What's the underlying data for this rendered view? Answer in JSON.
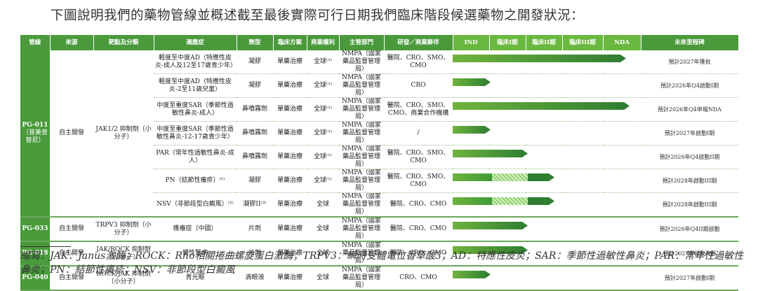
{
  "caption": "下圖說明我們的藥物管線並概述截至最後實際可行日期我們臨床階段候選藥物之開發狀況：",
  "headers": {
    "product": "管線",
    "source": "來源",
    "target": "靶點及分類",
    "indication": "適應症",
    "dosage": "劑型",
    "regimen": "臨床方案",
    "rights": "商業權利",
    "authority": "主管部門",
    "partners": "研發／商業夥伴",
    "ind": "IND",
    "p1": "臨床I期",
    "p2": "臨床II期",
    "p3": "臨床III期",
    "nda": "NDA",
    "future": "未來里程碑"
  },
  "groups": [
    {
      "product": "PG-011",
      "product_sub": "（普美昔替尼）",
      "source": "自主開發",
      "target": "JAK1/2 抑制劑（小分子）",
      "rows": [
        {
          "indication": "輕度至中度AD（特應性皮炎-成人及12至17歲青少年）",
          "dosage": "凝膠",
          "regimen": "單藥治療",
          "rights": "全球⁽¹⁾",
          "authority": "NMPA（國家藥品監督管理局）",
          "partners": "醫院、CRO、SMO、CMO",
          "progress": 0.92,
          "hatch": null,
          "milestone": "預計2027年獲批"
        },
        {
          "indication": "輕度至中度AD（特應性皮炎-2至11歲兒童）",
          "dosage": "凝膠",
          "regimen": "單藥治療",
          "rights": "全球⁽¹⁾",
          "authority": "NMPA（國家藥品監督管理局）",
          "partners": "CRO",
          "progress": 0.2,
          "hatch": null,
          "milestone": "預計2026年Q4啟動I期"
        },
        {
          "indication": "中度至重度SAR（季節性過敏性鼻炎-成人）",
          "dosage": "鼻噴霧劑",
          "regimen": "單藥治療",
          "rights": "全球⁽¹⁾",
          "authority": "NMPA（國家藥品監督管理局）",
          "partners": "醫院、CRO、SMO、CMO、商業合作機構",
          "progress": 0.94,
          "hatch": null,
          "milestone": "預計2026年Q4申報NDA"
        },
        {
          "indication": "中度至重度SAR（季節性過敏性鼻炎-12-17歲青少年）",
          "dosage": "鼻噴霧劑",
          "regimen": "單藥治療",
          "rights": "全球⁽¹⁾",
          "authority": "NMPA（國家藥品監督管理局）",
          "partners": "/",
          "progress": 0.2,
          "hatch": null,
          "milestone": "預計2027年啟動I期"
        },
        {
          "indication": "PAR（常年性過敏性鼻炎-成人）",
          "dosage": "鼻噴霧劑",
          "regimen": "單藥治療",
          "rights": "全球⁽¹⁾",
          "authority": "NMPA（國家藥品監督管理局）",
          "partners": "醫院、CRO、SMO、CMO",
          "progress": 0.4,
          "hatch": null,
          "milestone": "預計2026年Q4啟動II期"
        },
        {
          "indication": "PN（結節性癢疹）⁽¹⁾",
          "dosage": "凝膠",
          "regimen": "單藥治療",
          "rights": "全球⁽¹⁾",
          "authority": "NMPA（國家藥品監督管理局）",
          "partners": "醫院、CRO、SMO、CMO",
          "progress": 0.54,
          "hatch": [
            0.21,
            0.4
          ],
          "milestone": "預計2028年啟動III期"
        },
        {
          "indication": "NSV（非節段型白癜風）⁽²⁾",
          "dosage": "凝膠II⁽³⁾",
          "regimen": "單藥治療",
          "rights": "全球",
          "authority": "NMPA（國家藥品監督管理局）",
          "partners": "醫院、CRO、CMO",
          "progress": 0.54,
          "hatch": [
            0.21,
            0.4
          ],
          "milestone": "預計2028年啟動III期"
        }
      ]
    },
    {
      "product": "PG-033",
      "product_sub": "",
      "source": "自主開發",
      "target": "TRPV3 抑制劑（小分子）",
      "rows": [
        {
          "indication": "瘙癢症（中國）",
          "dosage": "片劑",
          "regimen": "單藥治療",
          "rights": "全球",
          "authority": "NMPA（國家藥品監督管理局）",
          "partners": "醫院、CRO、CMO",
          "progress": 0.4,
          "hatch": null,
          "milestone": "預計2026年Q4II期啟動"
        }
      ]
    },
    {
      "product": "PG-018",
      "product_sub": "",
      "source": "自主開發",
      "target": "JAK/ROCK 抑制劑（小分子）",
      "rows": [
        {
          "indication": "慢性腎病",
          "dosage": "片劑",
          "regimen": "單藥治療",
          "rights": "全球",
          "authority": "NMPA（國家藥品監督管理局）",
          "partners": "醫院、CRO、CMO",
          "progress": 0.4,
          "hatch": null,
          "milestone": "預計2027年啟動II期"
        }
      ]
    },
    {
      "product": "PG-040",
      "product_sub": "",
      "source": "自主開發",
      "target": "ROCK/JAK 抑制劑（小分子）",
      "rows": [
        {
          "indication": "青光眼",
          "dosage": "滴眼液",
          "regimen": "單藥治療",
          "rights": "全球",
          "authority": "NMPA（國家藥品監督管理局）",
          "partners": "CRO、CMO",
          "progress": 0.2,
          "hatch": null,
          "milestone": "預計2027年啟動I期"
        }
      ]
    }
  ],
  "abbreviations": "縮寫：JAK：Janus激酶；ROCK：Rho相關捲曲螺旋蛋白激酶；TRPV3：瞬時受體電位香草酸3；AD：特應性皮炎；SAR：季節性過敏性鼻炎；PAR：常年性過敏性鼻炎；PN：結節性癢疹；NSV：非節段型白癜風",
  "colors": {
    "header": "#4a9a3c",
    "phase_header": "#6ab83f",
    "bar_start": "#6fb33d",
    "bar_end": "#2e7d32"
  }
}
